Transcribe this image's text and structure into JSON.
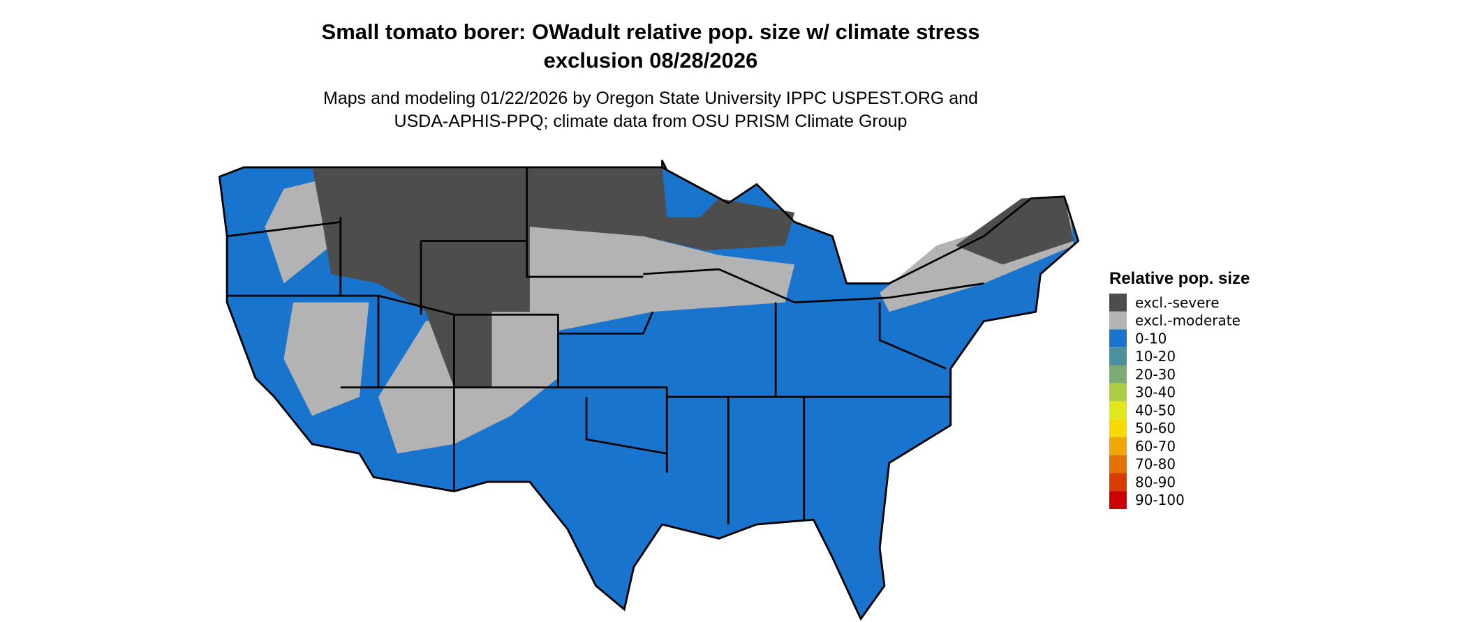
{
  "title": [
    "Small tomato borer: OWadult relative pop. size w/ climate stress",
    "exclusion 08/28/2026"
  ],
  "subtitle": [
    "Maps and modeling 01/22/2026 by Oregon State University IPPC USPEST.ORG and",
    "USDA-APHIS-PPQ; climate data from OSU PRISM Climate Group"
  ],
  "legend": {
    "title": "Relative pop. size",
    "items": [
      {
        "label": "excl.-severe",
        "color": "#4d4d4d"
      },
      {
        "label": "excl.-moderate",
        "color": "#b3b3b3"
      },
      {
        "label": "0-10",
        "color": "#1874cd"
      },
      {
        "label": "10-20",
        "color": "#4a90a0"
      },
      {
        "label": "20-30",
        "color": "#7cab74"
      },
      {
        "label": "30-40",
        "color": "#b0cb44"
      },
      {
        "label": "40-50",
        "color": "#e0e81c"
      },
      {
        "label": "50-60",
        "color": "#f7d900"
      },
      {
        "label": "60-70",
        "color": "#f0a800"
      },
      {
        "label": "70-80",
        "color": "#e57200"
      },
      {
        "label": "80-90",
        "color": "#d83c00"
      },
      {
        "label": "90-100",
        "color": "#cc0000"
      }
    ]
  }
}
